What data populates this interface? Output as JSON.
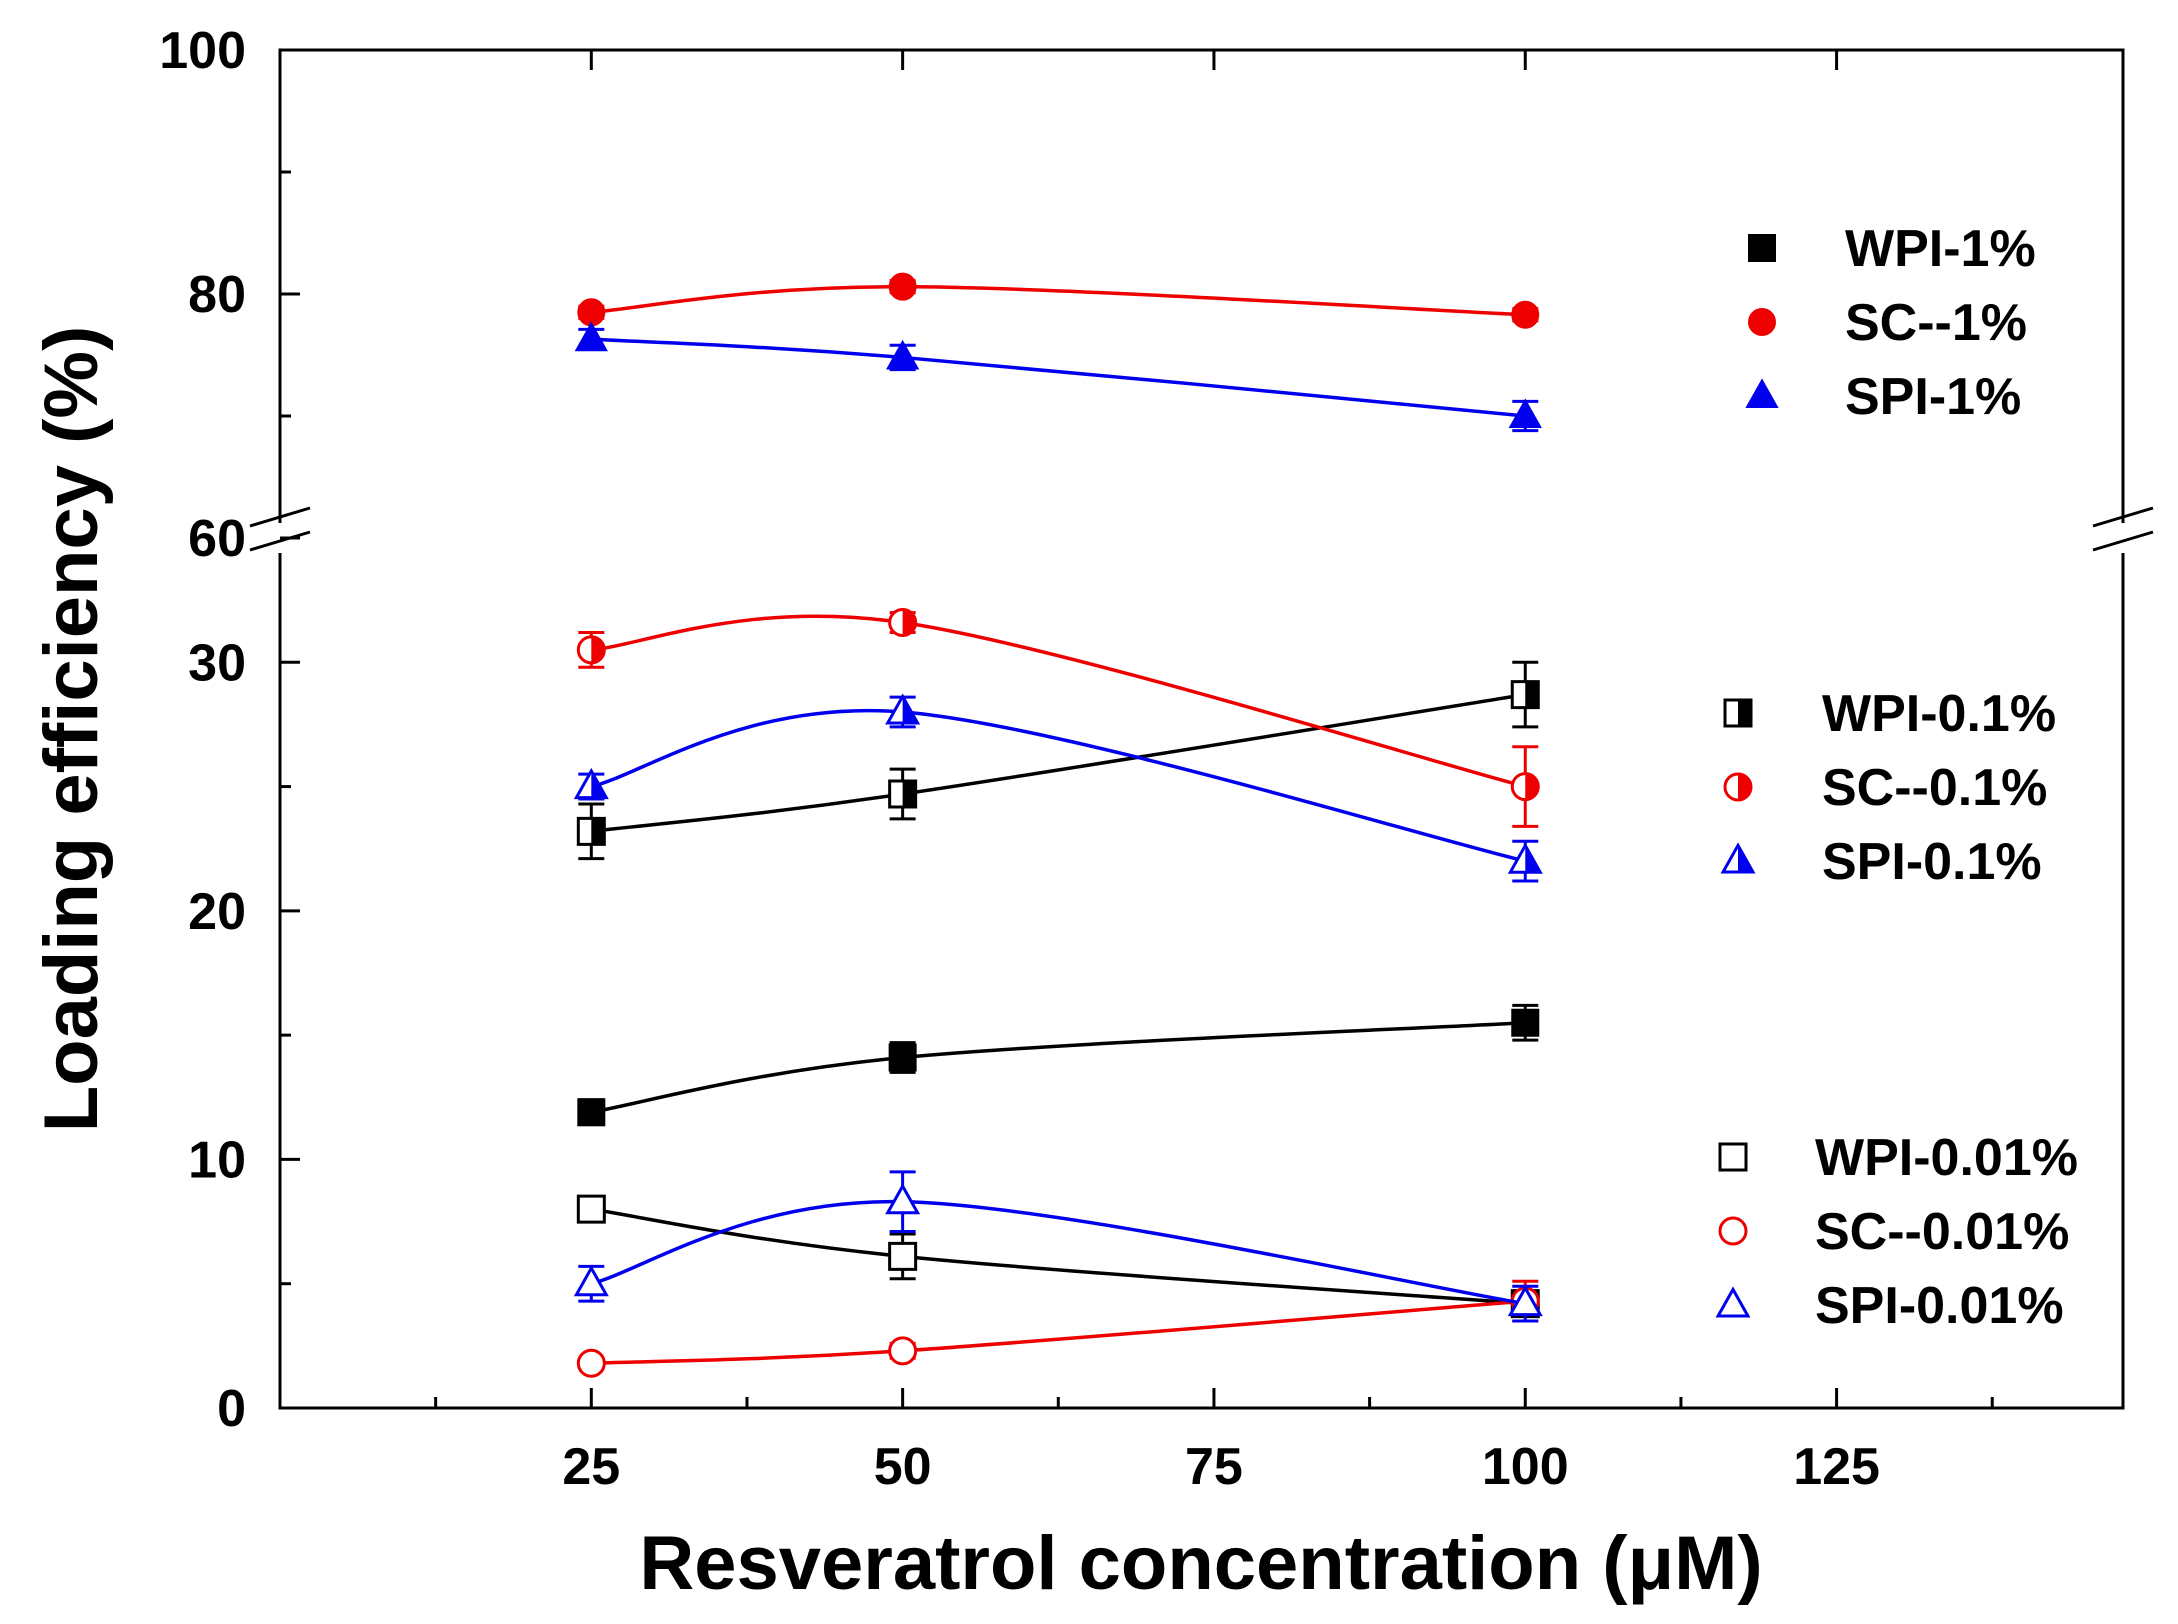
{
  "chart_data": {
    "type": "line",
    "xlabel": "Resveratrol concentration (μM)",
    "ylabel": "Loading efficiency (%)",
    "xlim": [
      0,
      148
    ],
    "x_ticks": [
      25,
      50,
      75,
      100,
      125
    ],
    "x_tick_labels": [
      "25",
      "50",
      "75",
      "100",
      "125"
    ],
    "y_axis_broken": true,
    "y_segments": [
      {
        "range": [
          0,
          35
        ],
        "ticks": [
          0,
          10,
          20,
          30
        ],
        "tick_labels": [
          "0",
          "10",
          "20",
          "30"
        ]
      },
      {
        "range": [
          60,
          100
        ],
        "ticks": [
          60,
          80,
          100
        ],
        "tick_labels": [
          "60",
          "80",
          "100"
        ]
      }
    ],
    "x": [
      25,
      50,
      100
    ],
    "series": [
      {
        "name": "WPI-1%",
        "color": "#000000",
        "marker": "square",
        "fill": "full",
        "values": [
          null,
          null,
          null
        ],
        "errors": [
          0,
          0,
          0
        ]
      },
      {
        "name": "SC--1%",
        "color": "#ee0000",
        "marker": "circle",
        "fill": "full",
        "values": [
          78.5,
          80.6,
          78.3
        ],
        "errors": [
          0.5,
          0.5,
          0.5
        ]
      },
      {
        "name": "SPI-1%",
        "color": "#0000ee",
        "marker": "triangle",
        "fill": "full",
        "values": [
          76.3,
          74.8,
          70.0
        ],
        "errors": [
          0.8,
          1.0,
          1.2
        ]
      },
      {
        "name": "WPI-0.1%",
        "color": "#000000",
        "marker": "square",
        "fill": "half",
        "values": [
          23.2,
          24.7,
          28.7
        ],
        "errors": [
          1.1,
          1.0,
          1.3
        ]
      },
      {
        "name": "SC--0.1%",
        "color": "#ee0000",
        "marker": "circle",
        "fill": "half",
        "values": [
          30.5,
          31.6,
          25.0
        ],
        "errors": [
          0.7,
          0.4,
          1.6
        ]
      },
      {
        "name": "SPI-0.1%",
        "color": "#0000ee",
        "marker": "triangle",
        "fill": "half",
        "values": [
          25.0,
          28.0,
          22.0
        ],
        "errors": [
          0.5,
          0.6,
          0.8
        ]
      },
      {
        "name": "WPI-0.01%",
        "color": "#000000",
        "marker": "square",
        "fill": "open",
        "values": [
          8.0,
          6.1,
          4.2
        ],
        "errors": [
          0.3,
          0.9,
          0.4
        ]
      },
      {
        "name": "SC--0.01%",
        "color": "#ee0000",
        "marker": "circle",
        "fill": "open",
        "values": [
          1.8,
          2.3,
          4.3
        ],
        "errors": [
          0.2,
          0.3,
          0.8
        ]
      },
      {
        "name": "SPI-0.01%",
        "color": "#0000ee",
        "marker": "triangle",
        "fill": "open",
        "values": [
          5.0,
          8.3,
          4.2
        ],
        "errors": [
          0.7,
          1.2,
          0.7
        ]
      }
    ],
    "unlegended_series": [
      {
        "name": "WPI-1% (curve)",
        "color": "#000000",
        "marker": "square",
        "fill": "full",
        "values": [
          11.9,
          14.1,
          15.5
        ],
        "errors": [
          0.5,
          0.6,
          0.7
        ]
      }
    ],
    "legend_groups": [
      {
        "placement": "top-right",
        "entries": [
          "WPI-1%",
          "SC--1%",
          "SPI-1%"
        ]
      },
      {
        "placement": "middle-right",
        "entries": [
          "WPI-0.1%",
          "SC--0.1%",
          "SPI-0.1%"
        ]
      },
      {
        "placement": "bottom-right",
        "entries": [
          "WPI-0.01%",
          "SC--0.01%",
          "SPI-0.01%"
        ]
      }
    ]
  }
}
